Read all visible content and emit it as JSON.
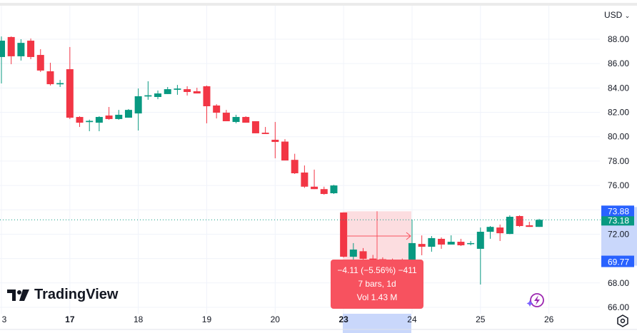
{
  "header": {
    "currency": "USD"
  },
  "branding": {
    "logo_text": "TradingView"
  },
  "colors": {
    "up": "#089981",
    "down": "#f23645",
    "measure_fill": "#fcdde0",
    "measure_line": "#f7525f",
    "highlight": "#c9d7fb",
    "label_blue": "#2962ff",
    "grid": "#f0f3fa"
  },
  "measure": {
    "line1": "−4.11 (−5.56%) −411",
    "line2": "7 bars, 1d",
    "line3": "Vol 1.43 M",
    "top_price": "73.88",
    "bottom_price": "69.77"
  },
  "last_price": "73.18",
  "chart_data": {
    "type": "candlestick",
    "ylim": [
      65.4,
      90
    ],
    "y_ticks": [
      "88.00",
      "86.00",
      "84.00",
      "82.00",
      "80.00",
      "78.00",
      "76.00",
      "72.00",
      "68.00",
      "66.00"
    ],
    "x_ticks": [
      {
        "bar": 0,
        "label": "3",
        "bold": false
      },
      {
        "bar": 7,
        "label": "17",
        "bold": true
      },
      {
        "bar": 14,
        "label": "18",
        "bold": false
      },
      {
        "bar": 21,
        "label": "19",
        "bold": false
      },
      {
        "bar": 28,
        "label": "20",
        "bold": false
      },
      {
        "bar": 35,
        "label": "23",
        "bold": true
      },
      {
        "bar": 42,
        "label": "24",
        "bold": false
      },
      {
        "bar": 49,
        "label": "25",
        "bold": false
      },
      {
        "bar": 56,
        "label": "26",
        "bold": false
      }
    ],
    "ohlc": [
      [
        86.54,
        88.23,
        84.37,
        87.88
      ],
      [
        88.18,
        88.23,
        85.95,
        86.6
      ],
      [
        86.6,
        88.0,
        86.25,
        87.7
      ],
      [
        87.88,
        88.06,
        86.36,
        86.54
      ],
      [
        86.71,
        87.18,
        85.31,
        85.43
      ],
      [
        85.37,
        86.07,
        84.2,
        84.31
      ],
      [
        84.3,
        84.66,
        84.08,
        84.4
      ],
      [
        85.54,
        87.36,
        81.45,
        81.56
      ],
      [
        81.62,
        81.68,
        80.8,
        81.15
      ],
      [
        81.2,
        81.4,
        80.45,
        81.3
      ],
      [
        81.15,
        81.68,
        80.45,
        81.62
      ],
      [
        81.74,
        82.44,
        81.39,
        81.45
      ],
      [
        81.45,
        82.2,
        81.39,
        81.8
      ],
      [
        81.56,
        82.27,
        81.56,
        82.2
      ],
      [
        81.91,
        83.96,
        80.51,
        83.32
      ],
      [
        83.3,
        84.55,
        83.03,
        83.4
      ],
      [
        83.26,
        83.79,
        83.08,
        83.55
      ],
      [
        83.5,
        84.08,
        83.5,
        83.9
      ],
      [
        83.85,
        84.25,
        83.44,
        83.95
      ],
      [
        83.9,
        84.14,
        83.38,
        83.67
      ],
      [
        83.73,
        84.02,
        83.55,
        83.55
      ],
      [
        84.14,
        84.2,
        81.1,
        82.5
      ],
      [
        82.56,
        82.67,
        81.5,
        81.97
      ],
      [
        81.97,
        82.2,
        81.27,
        81.27
      ],
      [
        81.21,
        81.8,
        81.1,
        81.62
      ],
      [
        81.62,
        81.68,
        81.15,
        81.15
      ],
      [
        81.27,
        81.27,
        80.28,
        80.28
      ],
      [
        80.33,
        80.8,
        80.22,
        80.22
      ],
      [
        79.75,
        81.21,
        78.23,
        79.57
      ],
      [
        79.6,
        79.8,
        78.05,
        78.05
      ],
      [
        78.1,
        78.6,
        76.94,
        77.0
      ],
      [
        77.06,
        77.64,
        75.8,
        75.9
      ],
      [
        75.9,
        77.3,
        75.7,
        75.7
      ],
      [
        75.7,
        75.9,
        75.24,
        75.3
      ],
      [
        75.36,
        76.05,
        75.3,
        76.0
      ],
      [
        73.78,
        73.78,
        70.1,
        70.15
      ],
      [
        70.15,
        71.27,
        69.8,
        70.74
      ],
      [
        70.6,
        70.86,
        69.8,
        69.98
      ],
      [
        70.0,
        70.3,
        69.7,
        69.9
      ],
      [
        69.95,
        70.1,
        69.7,
        69.85
      ],
      [
        69.9,
        70.0,
        69.7,
        69.8
      ],
      [
        69.85,
        70.0,
        69.7,
        69.8
      ],
      [
        69.8,
        73.2,
        69.7,
        71.27
      ],
      [
        71.2,
        71.9,
        70.27,
        70.97
      ],
      [
        70.97,
        71.85,
        70.56,
        71.68
      ],
      [
        71.62,
        71.74,
        70.8,
        71.15
      ],
      [
        71.15,
        71.91,
        71.15,
        71.38
      ],
      [
        71.38,
        71.62,
        71.03,
        71.09
      ],
      [
        71.2,
        71.44,
        71.09,
        71.27
      ],
      [
        70.8,
        72.55,
        67.87,
        72.2
      ],
      [
        72.2,
        72.67,
        71.62,
        72.6
      ],
      [
        72.55,
        72.79,
        71.44,
        72.08
      ],
      [
        72.02,
        73.55,
        72.0,
        73.43
      ],
      [
        73.49,
        73.55,
        72.6,
        72.67
      ],
      [
        72.73,
        73.02,
        72.6,
        72.6
      ],
      [
        72.6,
        73.26,
        72.6,
        73.18
      ]
    ]
  }
}
